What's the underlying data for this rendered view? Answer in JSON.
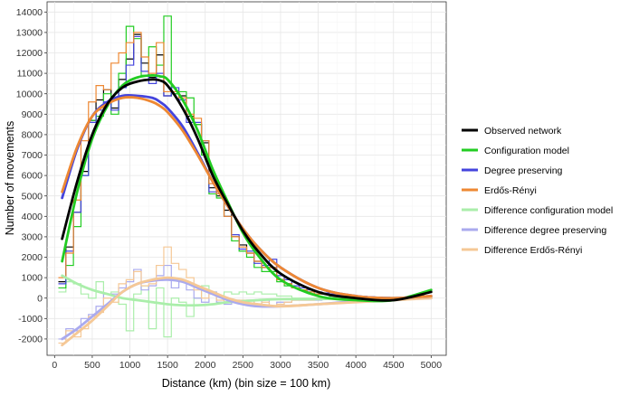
{
  "chart_data": {
    "type": "line",
    "xlabel": "Distance (km) (bin size = 100 km)",
    "ylabel": "Number of movements",
    "xlim": [
      -100,
      5200
    ],
    "ylim": [
      -2800,
      14500
    ],
    "xticks": [
      0,
      500,
      1000,
      1500,
      2000,
      2500,
      3000,
      3500,
      4000,
      4500,
      5000
    ],
    "yticks": [
      -2000,
      -1000,
      0,
      1000,
      2000,
      3000,
      4000,
      5000,
      6000,
      7000,
      8000,
      9000,
      10000,
      11000,
      12000,
      13000,
      14000
    ],
    "grid": true,
    "legend_position": "right",
    "step_series": [
      {
        "name": "Observed network",
        "color": "#000000",
        "x": [
          100,
          200,
          300,
          400,
          500,
          600,
          700,
          800,
          900,
          1000,
          1100,
          1200,
          1300,
          1400,
          1500,
          1600,
          1700,
          1800,
          1900,
          2000,
          2100,
          2200,
          2300,
          2400,
          2500,
          2600,
          2700,
          2800,
          2900,
          3000,
          3100,
          3200,
          3300,
          3400,
          3500,
          3600,
          3700,
          3800,
          3900,
          4000,
          4100,
          4200,
          4300,
          4400,
          4500
        ],
        "y": [
          800,
          2500,
          4200,
          6200,
          8700,
          9700,
          10200,
          9300,
          10700,
          11700,
          12900,
          11500,
          10800,
          11900,
          9900,
          10000,
          9900,
          8900,
          8500,
          7600,
          5400,
          5000,
          4300,
          3000,
          2600,
          2200,
          1800,
          1500,
          1500,
          900,
          700,
          500,
          400,
          300,
          200,
          200,
          150,
          100,
          100,
          80,
          60,
          50,
          40,
          30,
          20
        ]
      },
      {
        "name": "Configuration model",
        "color": "#22cc22",
        "x": [
          100,
          200,
          300,
          400,
          500,
          600,
          700,
          800,
          900,
          1000,
          1100,
          1200,
          1300,
          1400,
          1500,
          1600,
          1700,
          1800,
          1900,
          2000,
          2100,
          2200,
          2300,
          2400,
          2500,
          2600,
          2700,
          2800,
          2900,
          3000,
          3100,
          3200,
          3300,
          3400,
          3500,
          3600,
          3700,
          3800,
          3900,
          4000,
          4100,
          4200,
          4300,
          4400,
          4500
        ],
        "y": [
          500,
          1600,
          3500,
          6000,
          8700,
          8900,
          10000,
          9000,
          11000,
          13300,
          12700,
          10900,
          12300,
          11400,
          13800,
          10000,
          10100,
          9800,
          8500,
          7000,
          5100,
          4900,
          4000,
          2800,
          2300,
          2000,
          1500,
          1300,
          1300,
          800,
          600,
          500,
          400,
          300,
          200,
          200,
          100,
          100,
          80,
          60,
          50,
          40,
          30,
          20,
          20
        ]
      },
      {
        "name": "Degree preserving",
        "color": "#4444dd",
        "x": [
          100,
          200,
          300,
          400,
          500,
          600,
          700,
          800,
          900,
          1000,
          1100,
          1200,
          1300,
          1400,
          1500,
          1600,
          1700,
          1800,
          1900,
          2000,
          2100,
          2200,
          2300,
          2400,
          2500,
          2600,
          2700,
          2800,
          2900,
          3000,
          3100,
          3200,
          3300,
          3400,
          3500,
          3600,
          3700,
          3800,
          3900,
          4000,
          4100,
          4200,
          4300,
          4400,
          4500
        ],
        "y": [
          700,
          2300,
          4200,
          6000,
          8600,
          9200,
          9600,
          9200,
          10300,
          11400,
          12800,
          11100,
          10500,
          11000,
          9900,
          10300,
          9700,
          8600,
          8600,
          7700,
          5200,
          5100,
          4000,
          3100,
          2400,
          2300,
          1700,
          1600,
          1900,
          1100,
          900,
          600,
          500,
          400,
          300,
          250,
          200,
          150,
          120,
          100,
          80,
          60,
          50,
          40,
          30
        ]
      },
      {
        "name": "Erdős-Rényi",
        "color": "#ee8833",
        "x": [
          100,
          200,
          300,
          400,
          500,
          600,
          700,
          800,
          900,
          1000,
          1100,
          1200,
          1300,
          1400,
          1500,
          1600,
          1700,
          1800,
          1900,
          2000,
          2100,
          2200,
          2300,
          2400,
          2500,
          2600,
          2700,
          2800,
          2900,
          3000,
          3100,
          3200,
          3300,
          3400,
          3500,
          3600,
          3700,
          3800,
          3900,
          4000,
          4100,
          4200,
          4300,
          4400,
          4500
        ],
        "y": [
          1000,
          2200,
          4800,
          7700,
          9600,
          10400,
          10200,
          11500,
          12000,
          12500,
          13000,
          11800,
          11000,
          12500,
          10100,
          10100,
          9800,
          9000,
          8800,
          7700,
          5600,
          5100,
          4000,
          3000,
          2500,
          2200,
          1800,
          1500,
          1500,
          900,
          700,
          500,
          400,
          300,
          200,
          200,
          150,
          100,
          100,
          80,
          60,
          50,
          40,
          30,
          20
        ]
      },
      {
        "name": "Difference configuration model",
        "color": "#aaeeaa",
        "x": [
          100,
          200,
          300,
          400,
          500,
          600,
          700,
          800,
          900,
          1000,
          1100,
          1200,
          1300,
          1400,
          1500,
          1600,
          1700,
          1800,
          1900,
          2000,
          2100,
          2200,
          2300,
          2400,
          2500,
          2600,
          2700,
          2800,
          2900,
          3000,
          3100,
          3200,
          3300,
          3400,
          3500,
          3600,
          3700,
          3800,
          3900,
          4000,
          4100,
          4200,
          4300,
          4400,
          4500
        ],
        "y": [
          300,
          800,
          700,
          200,
          0,
          800,
          200,
          300,
          -300,
          -1600,
          200,
          600,
          -1500,
          500,
          -1900,
          0,
          -200,
          -900,
          0,
          600,
          300,
          100,
          300,
          200,
          300,
          200,
          300,
          200,
          200,
          100,
          100,
          0,
          0,
          0,
          0,
          0,
          50,
          0,
          20,
          20,
          10,
          10,
          10,
          10,
          0
        ]
      },
      {
        "name": "Difference degree preserving",
        "color": "#aaaaee",
        "x": [
          100,
          200,
          300,
          400,
          500,
          600,
          700,
          800,
          900,
          1000,
          1100,
          1200,
          1300,
          1400,
          1500,
          1600,
          1700,
          1800,
          1900,
          2000,
          2100,
          2200,
          2300,
          2400,
          2500,
          2600,
          2700,
          2800,
          2900,
          3000,
          3100,
          3200,
          3300,
          3400,
          3500,
          3600,
          3700,
          3800,
          3900,
          4000,
          4100,
          4200,
          4300,
          4400,
          4500
        ],
        "y": [
          -2000,
          -1500,
          -1600,
          -1000,
          -800,
          -400,
          200,
          200,
          500,
          800,
          1400,
          400,
          600,
          1100,
          1600,
          500,
          800,
          400,
          0,
          -200,
          300,
          -200,
          -300,
          -100,
          -200,
          -100,
          -300,
          -100,
          -400,
          -200,
          -200,
          -100,
          -100,
          -100,
          -100,
          -50,
          -50,
          -50,
          -20,
          -20,
          -20,
          -10,
          -10,
          -10,
          0
        ]
      },
      {
        "name": "Difference Erdős-Rényi",
        "color": "#f5c896",
        "x": [
          100,
          200,
          300,
          400,
          500,
          600,
          700,
          800,
          900,
          1000,
          1100,
          1200,
          1300,
          1400,
          1500,
          1600,
          1700,
          1800,
          1900,
          2000,
          2100,
          2200,
          2300,
          2400,
          2500,
          2600,
          2700,
          2800,
          2900,
          3000,
          3100,
          3200,
          3300,
          3400,
          3500,
          3600,
          3700,
          3800,
          3900,
          4000,
          4100,
          4200,
          4300,
          4400,
          4500
        ],
        "y": [
          -2200,
          -1600,
          -1900,
          -1500,
          -900,
          -700,
          0,
          -200,
          700,
          900,
          1300,
          600,
          700,
          1600,
          2500,
          1700,
          1400,
          1000,
          400,
          0,
          200,
          -100,
          -200,
          -100,
          -100,
          -100,
          -300,
          -200,
          -400,
          -300,
          -200,
          -100,
          -100,
          -100,
          -50,
          -50,
          -50,
          -20,
          -20,
          -20,
          -10,
          -10,
          -10,
          0,
          0
        ]
      }
    ],
    "smooth_series": [
      {
        "name": "Observed network",
        "color": "#000000",
        "x": [
          100,
          300,
          500,
          700,
          900,
          1100,
          1300,
          1400,
          1500,
          1700,
          1900,
          2100,
          2300,
          2500,
          2700,
          3000,
          3500,
          4000,
          4500,
          5000
        ],
        "y": [
          2900,
          5700,
          8000,
          9500,
          10300,
          10600,
          10700,
          10650,
          10400,
          9300,
          7800,
          6000,
          4600,
          3300,
          2300,
          1200,
          300,
          0,
          -100,
          300
        ]
      },
      {
        "name": "Configuration model",
        "color": "#22cc22",
        "x": [
          100,
          300,
          500,
          700,
          900,
          1100,
          1300,
          1400,
          1500,
          1700,
          1900,
          2100,
          2300,
          2500,
          2700,
          3000,
          3500,
          4000,
          4500,
          5000
        ],
        "y": [
          1800,
          5200,
          7800,
          9400,
          10400,
          10800,
          10900,
          10850,
          10700,
          9700,
          8200,
          6300,
          4700,
          3200,
          2100,
          900,
          100,
          -100,
          -100,
          400
        ]
      },
      {
        "name": "Degree preserving",
        "color": "#4444dd",
        "x": [
          100,
          300,
          500,
          700,
          900,
          1100,
          1300,
          1400,
          1500,
          1700,
          1900,
          2100,
          2300,
          2500,
          2700,
          3000,
          3500,
          4000,
          4500,
          5000
        ],
        "y": [
          4900,
          7300,
          8900,
          9600,
          9900,
          9900,
          9800,
          9600,
          9300,
          8400,
          7100,
          5700,
          4500,
          3400,
          2500,
          1500,
          500,
          100,
          0,
          100
        ]
      },
      {
        "name": "Erdős-Rényi",
        "color": "#ee8833",
        "x": [
          100,
          300,
          500,
          700,
          900,
          1100,
          1300,
          1400,
          1500,
          1700,
          1900,
          2100,
          2300,
          2500,
          2700,
          3000,
          3500,
          4000,
          4500,
          5000
        ],
        "y": [
          5200,
          7400,
          8900,
          9500,
          9800,
          9800,
          9600,
          9400,
          9100,
          8200,
          7000,
          5700,
          4500,
          3400,
          2500,
          1500,
          500,
          100,
          0,
          100
        ]
      },
      {
        "name": "Difference configuration model",
        "color": "#aaeeaa",
        "x": [
          100,
          300,
          500,
          700,
          900,
          1100,
          1300,
          1500,
          1700,
          1900,
          2100,
          2300,
          2500,
          2700,
          3000,
          3500,
          4000,
          4500,
          5000
        ],
        "y": [
          1100,
          700,
          400,
          200,
          0,
          -100,
          -200,
          -300,
          -350,
          -350,
          -300,
          -200,
          -150,
          -100,
          -50,
          -50,
          0,
          0,
          50
        ]
      },
      {
        "name": "Difference degree preserving",
        "color": "#aaaaee",
        "x": [
          100,
          300,
          500,
          700,
          900,
          1100,
          1300,
          1500,
          1700,
          1900,
          2100,
          2300,
          2500,
          2700,
          3000,
          3500,
          4000,
          4500,
          5000
        ],
        "y": [
          -2000,
          -1500,
          -900,
          -300,
          300,
          700,
          850,
          900,
          800,
          500,
          200,
          -100,
          -300,
          -400,
          -400,
          -300,
          -150,
          -50,
          0
        ]
      },
      {
        "name": "Difference Erdős-Rényi",
        "color": "#f5c896",
        "x": [
          100,
          300,
          500,
          700,
          900,
          1100,
          1300,
          1500,
          1700,
          1900,
          2100,
          2300,
          2500,
          2700,
          3000,
          3500,
          4000,
          4500,
          5000
        ],
        "y": [
          -2300,
          -1700,
          -1100,
          -400,
          300,
          700,
          900,
          1000,
          900,
          600,
          300,
          0,
          -200,
          -300,
          -400,
          -300,
          -200,
          -100,
          0
        ]
      }
    ]
  }
}
